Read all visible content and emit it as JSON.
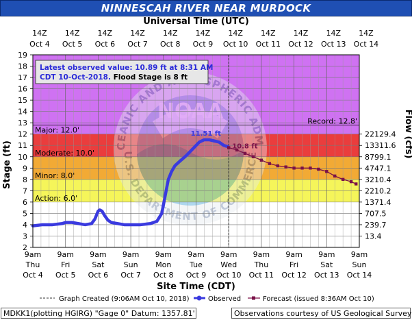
{
  "header": {
    "title": "NINNESCAH RIVER NEAR MURDOCK",
    "top_axis_title": "Universal Time (UTC)"
  },
  "chart_data": {
    "type": "line",
    "ylabel_left": "Stage (ft)",
    "ylabel_right": "Flow (cfs)",
    "xlabel": "Site Time (CDT)",
    "ylim": [
      2,
      19
    ],
    "y_ticks": [
      2,
      3,
      4,
      5,
      6,
      7,
      8,
      9,
      10,
      11,
      12,
      13,
      14,
      15,
      16,
      17,
      18,
      19
    ],
    "x_days_range": [
      0,
      10
    ],
    "x_tick_labels_bottom": [
      [
        "9am",
        "Thu",
        "Oct 4"
      ],
      [
        "9am",
        "Fri",
        "Oct 5"
      ],
      [
        "9am",
        "Sat",
        "Oct 6"
      ],
      [
        "9am",
        "Sun",
        "Oct 7"
      ],
      [
        "9am",
        "Mon",
        "Oct 8"
      ],
      [
        "9am",
        "Tue",
        "Oct 9"
      ],
      [
        "9am",
        "Wed",
        "Oct 10"
      ],
      [
        "9am",
        "Thu",
        "Oct 11"
      ],
      [
        "9am",
        "Fri",
        "Oct 12"
      ],
      [
        "9am",
        "Sat",
        "Oct 13"
      ],
      [
        "9am",
        "Sun",
        "Oct 14"
      ]
    ],
    "x_tick_labels_top": [
      [
        "14Z",
        "Oct 4"
      ],
      [
        "14Z",
        "Oct 5"
      ],
      [
        "14Z",
        "Oct 6"
      ],
      [
        "14Z",
        "Oct 7"
      ],
      [
        "14Z",
        "Oct 8"
      ],
      [
        "14Z",
        "Oct 9"
      ],
      [
        "14Z",
        "Oct 10"
      ],
      [
        "14Z",
        "Oct 11"
      ],
      [
        "14Z",
        "Oct 12"
      ],
      [
        "14Z",
        "Oct 13"
      ],
      [
        "14Z",
        "Oct 14"
      ]
    ],
    "flow_ticks": [
      {
        "stage": 3,
        "label": "13.4"
      },
      {
        "stage": 4,
        "label": "239.7"
      },
      {
        "stage": 5,
        "label": "707.5"
      },
      {
        "stage": 6,
        "label": "1371.4"
      },
      {
        "stage": 7,
        "label": "2210.2"
      },
      {
        "stage": 8,
        "label": "3210.4"
      },
      {
        "stage": 9,
        "label": "4747.1"
      },
      {
        "stage": 10,
        "label": "8799.1"
      },
      {
        "stage": 11,
        "label": "13311.6"
      },
      {
        "stage": 12,
        "label": "22129.4"
      }
    ],
    "bands": [
      {
        "name": "Action",
        "from": 2,
        "to": 6,
        "color": "#ffffff"
      },
      {
        "name": "Action",
        "from": 6,
        "to": 8,
        "color": "#f5f55a"
      },
      {
        "name": "Minor",
        "from": 8,
        "to": 10,
        "color": "#f2aa35"
      },
      {
        "name": "Moderate",
        "from": 10,
        "to": 12,
        "color": "#ea3d3d"
      },
      {
        "name": "Major",
        "from": 12,
        "to": 12.8,
        "color": "#cf72f2"
      },
      {
        "name": "Above record",
        "from": 12.8,
        "to": 19,
        "color": "#cf72f2"
      }
    ],
    "stage_labels": [
      {
        "text": "Major: 12.0'",
        "stage": 12
      },
      {
        "text": "Moderate: 10.0'",
        "stage": 10
      },
      {
        "text": "Minor: 8.0'",
        "stage": 8
      },
      {
        "text": "Action: 6.0'",
        "stage": 6
      },
      {
        "text": "Record: 12.8'",
        "stage": 12.8
      }
    ],
    "series": [
      {
        "name": "Observed",
        "color": "#3a3adf",
        "x": [
          0,
          0.3,
          0.6,
          0.9,
          1.0,
          1.2,
          1.4,
          1.6,
          1.8,
          1.9,
          2.0,
          2.05,
          2.12,
          2.2,
          2.3,
          2.4,
          2.6,
          2.8,
          3.0,
          3.3,
          3.6,
          3.8,
          3.95,
          4.05,
          4.15,
          4.25,
          4.35,
          4.5,
          4.7,
          4.9,
          5.1,
          5.25,
          5.4,
          5.55,
          5.7,
          5.85,
          5.98
        ],
        "y": [
          3.9,
          4.0,
          4.0,
          4.1,
          4.2,
          4.2,
          4.1,
          4.0,
          4.1,
          4.5,
          5.2,
          5.3,
          5.2,
          4.8,
          4.4,
          4.2,
          4.1,
          4.0,
          4.0,
          4.0,
          4.1,
          4.3,
          5.0,
          6.5,
          8.0,
          8.7,
          9.2,
          9.6,
          10.1,
          10.7,
          11.3,
          11.5,
          11.5,
          11.4,
          11.3,
          11.0,
          10.89
        ]
      },
      {
        "name": "Forecast",
        "color": "#7a1248",
        "x": [
          6.0,
          6.25,
          6.5,
          6.75,
          7.0,
          7.25,
          7.5,
          7.75,
          8.0,
          8.25,
          8.5,
          8.75,
          9.0,
          9.25,
          9.5,
          9.75,
          9.9
        ],
        "y": [
          10.8,
          10.6,
          10.3,
          10.0,
          9.7,
          9.4,
          9.2,
          9.1,
          9.0,
          9.0,
          9.0,
          8.9,
          8.7,
          8.3,
          8.0,
          7.8,
          7.6
        ]
      }
    ],
    "annotations": [
      {
        "text": "11.51 ft",
        "x": 5.3,
        "stage": 11.51,
        "color": "#3a3adf"
      },
      {
        "text": "10.8 ft",
        "x": 6.0,
        "stage": 10.8,
        "color": "#7a1248"
      }
    ],
    "graph_created_x": 6.0,
    "info_box": {
      "line1_blue": "Latest observed value: 10.89 ft at 8:31 AM",
      "line2_blue": "CDT 10-Oct-2018.",
      "line2_black": " Flood Stage is 8 ft"
    },
    "legend": [
      {
        "name": "Graph Created (9:06AM Oct 10, 2018)",
        "style": "dashed"
      },
      {
        "name": "Observed",
        "style": "observed"
      },
      {
        "name": "Forecast (issued 8:36AM Oct 10)",
        "style": "forecast"
      }
    ],
    "watermark": {
      "arc_top": "NATIONAL OCEANIC AND ATMOSPHERIC ADMINISTRATION",
      "arc_bottom": "U.S. DEPARTMENT OF COMMERCE",
      "center": "NOAA"
    }
  },
  "footer": {
    "left": "MDKK1(plotting HGIRG) \"Gage 0\" Datum: 1357.81'",
    "right": "Observations courtesy of US Geological Survey"
  },
  "colors": {
    "title_bg": "#1f4fb3",
    "observed": "#3a3adf",
    "forecast": "#7a1248",
    "grid": "#777777"
  }
}
